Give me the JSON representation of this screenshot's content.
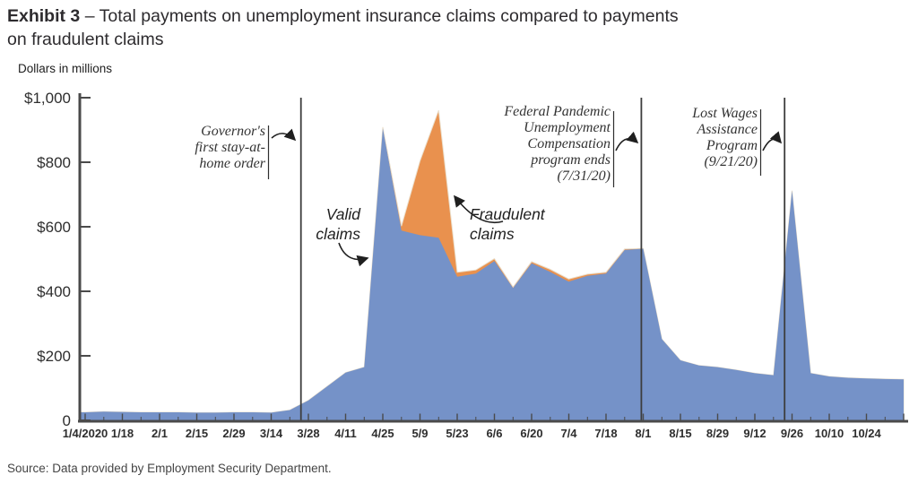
{
  "title": {
    "exhibit": "Exhibit 3",
    "dash": "–",
    "line1": "Total payments on unemployment insurance claims compared to payments",
    "line2": "on fraudulent claims"
  },
  "y_axis_label": "Dollars in millions",
  "source": "Source: Data provided by Employment Security Department.",
  "colors": {
    "valid_area": "#7592c8",
    "fraud_area": "#e9914e",
    "axis": "#4a4a4a",
    "event_line": "#3d3d3d",
    "text_dark": "#2d2b2e"
  },
  "annotations": {
    "governor": {
      "text": "Governor's\nfirst stay-at-\nhome order"
    },
    "valid": {
      "text": "Valid\nclaims"
    },
    "fraud": {
      "text": "Fraudulent\nclaims"
    },
    "fpuc": {
      "text": "Federal Pandemic\nUnemployment\nCompensation\nprogram ends\n(7/31/20)"
    },
    "lwa": {
      "text": "Lost Wages\nAssistance\nProgram\n(9/21/20)"
    }
  },
  "chart_data": {
    "type": "area",
    "stacked": true,
    "title": "Total payments on unemployment insurance claims compared to payments on fraudulent claims",
    "ylabel": "Dollars in millions",
    "ylim": [
      0,
      1000
    ],
    "grid": false,
    "x_weekly_dates": [
      "1/4/2020",
      "1/11",
      "1/18",
      "1/25",
      "2/1",
      "2/8",
      "2/15",
      "2/22",
      "2/29",
      "3/7",
      "3/14",
      "3/21",
      "3/28",
      "4/4",
      "4/11",
      "4/18",
      "4/25",
      "5/2",
      "5/9",
      "5/16",
      "5/23",
      "5/30",
      "6/6",
      "6/13",
      "6/20",
      "6/27",
      "7/4",
      "7/11",
      "7/18",
      "7/25",
      "8/1",
      "8/8",
      "8/15",
      "8/22",
      "8/29",
      "9/5",
      "9/12",
      "9/19",
      "9/26",
      "10/3",
      "10/10",
      "10/17",
      "10/24",
      "10/31",
      "11/7"
    ],
    "x_tick_labels": [
      "1/4/2020",
      "1/18",
      "2/1",
      "2/15",
      "2/29",
      "3/14",
      "3/28",
      "4/11",
      "4/25",
      "5/9",
      "5/23",
      "6/6",
      "6/20",
      "7/4",
      "7/18",
      "8/1",
      "8/15",
      "8/29",
      "9/12",
      "9/26",
      "10/10",
      "10/24"
    ],
    "y_ticks": [
      {
        "label": "$1,000",
        "value": 1000
      },
      {
        "label": "$800",
        "value": 800
      },
      {
        "label": "$600",
        "value": 600
      },
      {
        "label": "$400",
        "value": 400
      },
      {
        "label": "$200",
        "value": 200
      },
      {
        "label": "0",
        "value": 0
      }
    ],
    "series": [
      {
        "name": "Valid claims",
        "color": "#7592c8",
        "values": [
          25,
          27,
          26,
          25,
          25,
          25,
          24,
          24,
          25,
          25,
          24,
          32,
          62,
          105,
          148,
          165,
          905,
          588,
          574,
          566,
          445,
          455,
          494,
          410,
          487,
          460,
          430,
          448,
          455,
          528,
          532,
          252,
          186,
          170,
          165,
          156,
          146,
          140,
          712,
          146,
          136,
          132,
          130,
          128,
          127
        ]
      },
      {
        "name": "Fraudulent claims",
        "color": "#e9914e",
        "values": [
          0,
          0,
          0,
          0,
          0,
          0,
          0,
          0,
          0,
          0,
          0,
          0,
          0,
          0,
          0,
          0,
          4,
          14,
          230,
          395,
          14,
          11,
          7,
          3,
          5,
          8,
          8,
          5,
          4,
          3,
          1,
          0,
          0,
          0,
          0,
          0,
          0,
          0,
          0,
          0,
          0,
          0,
          0,
          0,
          0
        ]
      }
    ],
    "events": [
      {
        "name": "governor-stay-at-home-order",
        "week": 11.6
      },
      {
        "name": "fpuc-program-ends",
        "week": 29.9
      },
      {
        "name": "lwa-program",
        "week": 37.6
      }
    ]
  }
}
